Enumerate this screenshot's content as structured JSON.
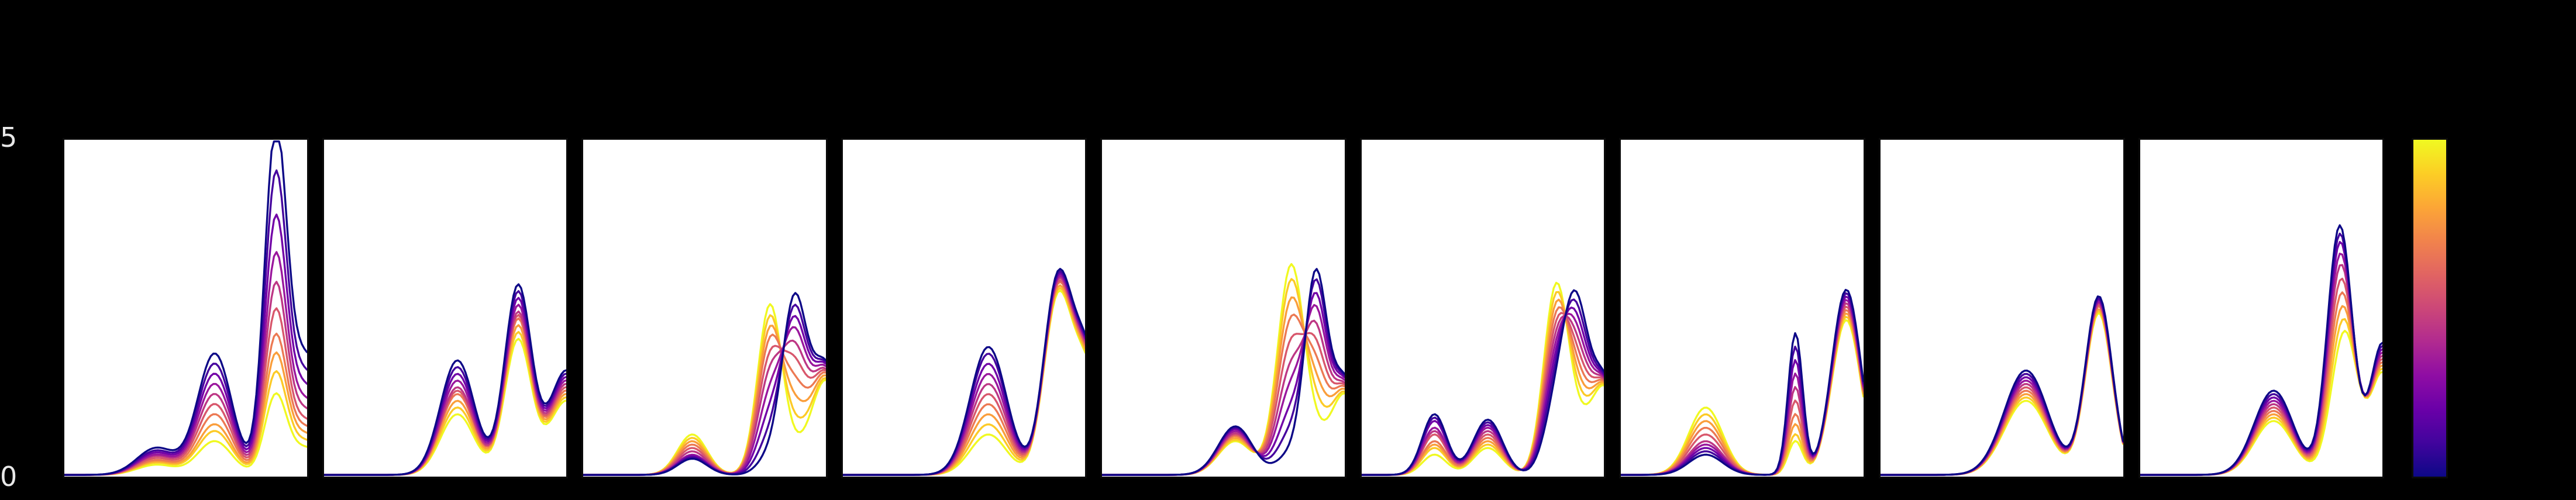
{
  "figure": {
    "background_color": "#000000",
    "panel_background": "#ffffff",
    "yticks": [
      "5",
      "0"
    ],
    "n_panels": 9,
    "colorbar": {
      "orientation": "vertical",
      "top_color": "#f0f921",
      "bottom_color": "#0d0887",
      "colormap_name": "plasma"
    }
  },
  "chart_data": {
    "type": "line",
    "layout": "row of 9 spectra panels, shared y-axis, vertical plasma colorbar at right",
    "ylim": [
      0,
      5
    ],
    "yticks": [
      0,
      5
    ],
    "xlim": [
      0,
      1
    ],
    "n_curves_per_panel": 10,
    "curve_color_order": "index 0 = yellow (high colorbar value), index 9 = dark navy (low colorbar value); dark curves drawn on top",
    "colormap": {
      "name": "plasma",
      "stops": [
        [
          0.0,
          "#0d0887"
        ],
        [
          0.1,
          "#41049d"
        ],
        [
          0.2,
          "#6a00a8"
        ],
        [
          0.3,
          "#8f0da4"
        ],
        [
          0.4,
          "#b12a90"
        ],
        [
          0.5,
          "#cc4778"
        ],
        [
          0.6,
          "#e16462"
        ],
        [
          0.7,
          "#f1834c"
        ],
        [
          0.8,
          "#fca636"
        ],
        [
          0.9,
          "#fcce25"
        ],
        [
          1.0,
          "#f0f921"
        ]
      ]
    },
    "panels": [
      {
        "peaks": [
          {
            "c": 0.38,
            "w": 0.08,
            "amps": [
              0.15,
              0.18,
              0.2,
              0.22,
              0.25,
              0.28,
              0.3,
              0.33,
              0.36,
              0.4
            ]
          },
          {
            "c": 0.62,
            "w": 0.07,
            "amps": [
              0.5,
              0.65,
              0.75,
              0.9,
              1.05,
              1.2,
              1.35,
              1.5,
              1.65,
              1.8
            ]
          },
          {
            "c": 0.87,
            "w": 0.045,
            "amps": [
              1.1,
              1.4,
              1.65,
              1.9,
              2.25,
              2.6,
              3.0,
              3.5,
              4.1,
              4.75
            ]
          },
          {
            "c": 1.0,
            "w": 0.08,
            "amps": [
              0.4,
              0.5,
              0.6,
              0.7,
              0.8,
              0.95,
              1.1,
              1.3,
              1.5,
              1.75
            ]
          }
        ]
      },
      {
        "peaks": [
          {
            "c": 0.55,
            "w": 0.07,
            "amps": [
              0.9,
              1.0,
              1.1,
              1.2,
              1.25,
              1.3,
              1.4,
              1.5,
              1.6,
              1.7
            ]
          },
          {
            "c": 0.8,
            "w": 0.055,
            "amps": [
              2.0,
              2.1,
              2.2,
              2.3,
              2.35,
              2.4,
              2.5,
              2.6,
              2.7,
              2.8
            ]
          },
          {
            "c": 1.0,
            "w": 0.07,
            "amps": [
              1.1,
              1.15,
              1.2,
              1.25,
              1.3,
              1.35,
              1.4,
              1.45,
              1.5,
              1.55
            ]
          }
        ]
      },
      {
        "peaks": [
          {
            "c": 0.45,
            "w": 0.06,
            "amps": [
              0.6,
              0.55,
              0.5,
              0.45,
              0.4,
              0.35,
              0.3,
              0.28,
              0.26,
              0.24
            ]
          },
          {
            "c": 0.77,
            "w": 0.05,
            "amps": [
              2.5,
              2.3,
              2.1,
              1.9,
              1.65,
              1.4,
              1.1,
              0.8,
              0.5,
              0.25
            ]
          },
          {
            "c": 0.87,
            "w": 0.05,
            "amps": [
              0.25,
              0.5,
              0.8,
              1.1,
              1.4,
              1.65,
              1.9,
              2.1,
              2.3,
              2.5
            ]
          },
          {
            "c": 1.0,
            "w": 0.06,
            "amps": [
              1.4,
              1.42,
              1.45,
              1.48,
              1.5,
              1.52,
              1.55,
              1.58,
              1.6,
              1.62
            ]
          }
        ]
      },
      {
        "peaks": [
          {
            "c": 0.6,
            "w": 0.075,
            "amps": [
              0.6,
              0.75,
              0.9,
              1.05,
              1.2,
              1.35,
              1.5,
              1.65,
              1.8,
              1.9
            ]
          },
          {
            "c": 0.88,
            "w": 0.055,
            "amps": [
              2.3,
              2.33,
              2.36,
              2.4,
              2.42,
              2.45,
              2.47,
              2.5,
              2.52,
              2.55
            ]
          },
          {
            "c": 1.0,
            "w": 0.07,
            "amps": [
              1.6,
              1.63,
              1.66,
              1.7,
              1.72,
              1.75,
              1.78,
              1.8,
              1.83,
              1.85
            ]
          }
        ]
      },
      {
        "peaks": [
          {
            "c": 0.55,
            "w": 0.07,
            "amps": [
              0.5,
              0.52,
              0.55,
              0.58,
              0.6,
              0.62,
              0.65,
              0.68,
              0.7,
              0.72
            ]
          },
          {
            "c": 0.78,
            "w": 0.055,
            "amps": [
              3.1,
              2.85,
              2.55,
              2.25,
              1.9,
              1.55,
              1.25,
              0.9,
              0.6,
              0.3
            ]
          },
          {
            "c": 0.88,
            "w": 0.045,
            "amps": [
              0.3,
              0.6,
              0.9,
              1.2,
              1.5,
              1.8,
              2.1,
              2.35,
              2.6,
              2.8
            ]
          },
          {
            "c": 1.0,
            "w": 0.06,
            "amps": [
              1.2,
              1.22,
              1.25,
              1.28,
              1.3,
              1.32,
              1.35,
              1.38,
              1.4,
              1.42
            ]
          }
        ]
      },
      {
        "peaks": [
          {
            "c": 0.3,
            "w": 0.05,
            "amps": [
              0.3,
              0.4,
              0.45,
              0.5,
              0.6,
              0.65,
              0.7,
              0.8,
              0.85,
              0.9
            ]
          },
          {
            "c": 0.52,
            "w": 0.06,
            "amps": [
              0.4,
              0.45,
              0.5,
              0.55,
              0.6,
              0.65,
              0.7,
              0.74,
              0.78,
              0.82
            ]
          },
          {
            "c": 0.8,
            "w": 0.05,
            "amps": [
              2.7,
              2.5,
              2.3,
              2.1,
              1.9,
              1.7,
              1.5,
              1.3,
              1.1,
              0.9
            ]
          },
          {
            "c": 0.88,
            "w": 0.05,
            "amps": [
              0.5,
              0.7,
              0.9,
              1.1,
              1.3,
              1.5,
              1.7,
              1.9,
              2.1,
              2.3
            ]
          },
          {
            "c": 1.0,
            "w": 0.06,
            "amps": [
              1.3,
              1.31,
              1.32,
              1.33,
              1.34,
              1.35,
              1.36,
              1.37,
              1.38,
              1.4
            ]
          }
        ]
      },
      {
        "peaks": [
          {
            "c": 0.35,
            "w": 0.07,
            "amps": [
              1.0,
              0.9,
              0.8,
              0.7,
              0.6,
              0.5,
              0.45,
              0.4,
              0.35,
              0.3
            ]
          },
          {
            "c": 0.72,
            "w": 0.03,
            "amps": [
              0.5,
              0.6,
              0.75,
              0.9,
              1.1,
              1.3,
              1.5,
              1.7,
              1.9,
              2.1
            ]
          },
          {
            "c": 0.93,
            "w": 0.06,
            "amps": [
              2.3,
              2.35,
              2.4,
              2.45,
              2.5,
              2.55,
              2.6,
              2.65,
              2.7,
              2.75
            ]
          }
        ]
      },
      {
        "peaks": [
          {
            "c": 0.6,
            "w": 0.09,
            "amps": [
              1.1,
              1.15,
              1.2,
              1.25,
              1.3,
              1.35,
              1.4,
              1.45,
              1.5,
              1.55
            ]
          },
          {
            "c": 0.9,
            "w": 0.055,
            "amps": [
              2.4,
              2.43,
              2.46,
              2.5,
              2.52,
              2.55,
              2.57,
              2.6,
              2.62,
              2.65
            ]
          }
        ]
      },
      {
        "peaks": [
          {
            "c": 0.55,
            "w": 0.08,
            "amps": [
              0.8,
              0.85,
              0.9,
              0.95,
              1.0,
              1.05,
              1.1,
              1.15,
              1.2,
              1.25
            ]
          },
          {
            "c": 0.82,
            "w": 0.05,
            "amps": [
              1.0,
              1.3,
              1.6,
              1.9,
              2.2,
              2.5,
              2.75,
              3.0,
              3.2,
              3.4
            ]
          },
          {
            "c": 0.86,
            "w": 0.05,
            "amps": [
              1.3,
              1.2,
              1.1,
              1.0,
              0.9,
              0.8,
              0.7,
              0.6,
              0.5,
              0.4
            ]
          },
          {
            "c": 1.0,
            "w": 0.05,
            "amps": [
              1.5,
              1.55,
              1.6,
              1.65,
              1.7,
              1.75,
              1.8,
              1.85,
              1.9,
              1.95
            ]
          }
        ]
      }
    ]
  }
}
